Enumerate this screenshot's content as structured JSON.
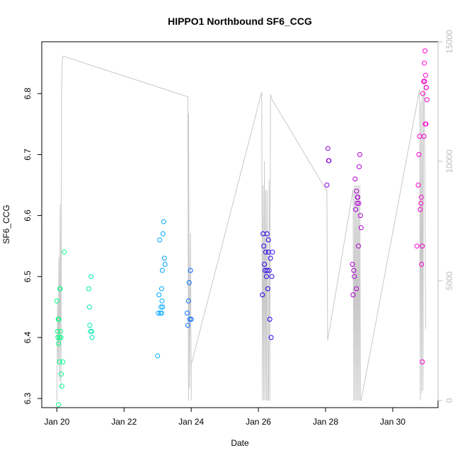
{
  "chart_data": {
    "type": "scatter",
    "title": "HIPPO1 Northbound SF6_CCG",
    "xlabel": "Date",
    "ylabel": "SF6_CCG",
    "x_ticks": [
      "Jan 20",
      "Jan 22",
      "Jan 24",
      "Jan 26",
      "Jan 28",
      "Jan 30"
    ],
    "x_tick_days": [
      20,
      22,
      24,
      26,
      28,
      30
    ],
    "xlim_days": [
      19.55,
      31.35
    ],
    "ylim": [
      6.285,
      6.885
    ],
    "y_ticks": [
      6.3,
      6.4,
      6.5,
      6.6,
      6.7,
      6.8
    ],
    "y2_ticks": [
      0,
      5000,
      10000,
      15000
    ],
    "y2lim": [
      -300,
      15000
    ],
    "color_scale": [
      "#00ff7f",
      "#00bfff",
      "#0000ff",
      "#9400d3",
      "#ff00cc"
    ],
    "points": [
      [
        20.0,
        6.46
      ],
      [
        20.02,
        6.41
      ],
      [
        20.03,
        6.4
      ],
      [
        20.04,
        6.43
      ],
      [
        20.05,
        6.39
      ],
      [
        20.06,
        6.43
      ],
      [
        20.08,
        6.4
      ],
      [
        20.1,
        6.48
      ],
      [
        20.11,
        6.41
      ],
      [
        20.12,
        6.4
      ],
      [
        20.08,
        6.36
      ],
      [
        20.13,
        6.34
      ],
      [
        20.15,
        6.32
      ],
      [
        20.18,
        6.36
      ],
      [
        20.22,
        6.54
      ],
      [
        20.05,
        6.29
      ],
      [
        20.09,
        6.48
      ],
      [
        20.95,
        6.48
      ],
      [
        20.97,
        6.45
      ],
      [
        20.98,
        6.42
      ],
      [
        21.0,
        6.41
      ],
      [
        21.02,
        6.5
      ],
      [
        21.04,
        6.41
      ],
      [
        21.05,
        6.4
      ],
      [
        23.0,
        6.37
      ],
      [
        23.02,
        6.44
      ],
      [
        23.04,
        6.47
      ],
      [
        23.06,
        6.56
      ],
      [
        23.08,
        6.44
      ],
      [
        23.1,
        6.45
      ],
      [
        23.12,
        6.48
      ],
      [
        23.14,
        6.51
      ],
      [
        23.15,
        6.45
      ],
      [
        23.16,
        6.57
      ],
      [
        23.18,
        6.59
      ],
      [
        23.2,
        6.53
      ],
      [
        23.22,
        6.52
      ],
      [
        23.12,
        6.44
      ],
      [
        23.13,
        6.46
      ],
      [
        23.88,
        6.44
      ],
      [
        23.9,
        6.42
      ],
      [
        23.92,
        6.46
      ],
      [
        23.94,
        6.49
      ],
      [
        23.96,
        6.43
      ],
      [
        23.98,
        6.51
      ],
      [
        24.0,
        6.43
      ],
      [
        26.12,
        6.47
      ],
      [
        26.14,
        6.57
      ],
      [
        26.16,
        6.55
      ],
      [
        26.18,
        6.52
      ],
      [
        26.2,
        6.51
      ],
      [
        26.22,
        6.54
      ],
      [
        26.24,
        6.5
      ],
      [
        26.26,
        6.57
      ],
      [
        26.28,
        6.48
      ],
      [
        26.3,
        6.54
      ],
      [
        26.32,
        6.51
      ],
      [
        26.34,
        6.43
      ],
      [
        26.36,
        6.53
      ],
      [
        26.38,
        6.4
      ],
      [
        26.4,
        6.5
      ],
      [
        26.42,
        6.54
      ],
      [
        26.26,
        6.51
      ],
      [
        26.3,
        6.56
      ],
      [
        28.04,
        6.65
      ],
      [
        28.07,
        6.71
      ],
      [
        28.09,
        6.69
      ],
      [
        28.1,
        6.69
      ],
      [
        28.8,
        6.52
      ],
      [
        28.82,
        6.47
      ],
      [
        28.84,
        6.51
      ],
      [
        28.86,
        6.5
      ],
      [
        28.88,
        6.66
      ],
      [
        28.9,
        6.61
      ],
      [
        28.92,
        6.64
      ],
      [
        28.94,
        6.62
      ],
      [
        28.96,
        6.63
      ],
      [
        28.98,
        6.55
      ],
      [
        29.0,
        6.68
      ],
      [
        29.02,
        6.7
      ],
      [
        29.04,
        6.6
      ],
      [
        29.06,
        6.58
      ],
      [
        28.92,
        6.48
      ],
      [
        28.95,
        6.63
      ],
      [
        28.99,
        6.62
      ],
      [
        30.72,
        6.55
      ],
      [
        30.76,
        6.65
      ],
      [
        30.78,
        6.7
      ],
      [
        30.8,
        6.73
      ],
      [
        30.82,
        6.61
      ],
      [
        30.84,
        6.62
      ],
      [
        30.86,
        6.52
      ],
      [
        30.88,
        6.36
      ],
      [
        30.9,
        6.8
      ],
      [
        30.92,
        6.82
      ],
      [
        30.94,
        6.85
      ],
      [
        30.96,
        6.87
      ],
      [
        30.98,
        6.83
      ],
      [
        31.0,
        6.81
      ],
      [
        31.02,
        6.79
      ],
      [
        30.85,
        6.63
      ],
      [
        30.88,
        6.55
      ],
      [
        30.93,
        6.73
      ],
      [
        30.97,
        6.75
      ],
      [
        31.0,
        6.81
      ],
      [
        30.95,
        6.82
      ],
      [
        30.99,
        6.75
      ]
    ],
    "altitude_track": [
      [
        20.0,
        0
      ],
      [
        20.02,
        4200
      ],
      [
        20.04,
        1500
      ],
      [
        20.06,
        6000
      ],
      [
        20.08,
        800
      ],
      [
        20.1,
        8200
      ],
      [
        20.12,
        500
      ],
      [
        20.14,
        12800
      ],
      [
        20.16,
        14200
      ],
      [
        20.18,
        14400
      ],
      [
        23.9,
        12700
      ],
      [
        23.92,
        0
      ],
      [
        23.92,
        12000
      ],
      [
        23.95,
        500
      ],
      [
        23.98,
        7000
      ],
      [
        24.0,
        0
      ],
      [
        24.0,
        1500
      ],
      [
        26.1,
        12900
      ],
      [
        26.12,
        0
      ],
      [
        26.14,
        9000
      ],
      [
        26.16,
        0
      ],
      [
        26.18,
        10000
      ],
      [
        26.2,
        0
      ],
      [
        26.22,
        8800
      ],
      [
        26.24,
        0
      ],
      [
        26.26,
        8800
      ],
      [
        26.28,
        0
      ],
      [
        26.3,
        0
      ],
      [
        26.32,
        9200
      ],
      [
        26.34,
        0
      ],
      [
        26.36,
        12800
      ],
      [
        26.4,
        12600
      ],
      [
        28.02,
        8800
      ],
      [
        28.04,
        8800
      ],
      [
        28.06,
        2500
      ],
      [
        28.82,
        8800
      ],
      [
        28.84,
        0
      ],
      [
        28.86,
        9000
      ],
      [
        28.88,
        0
      ],
      [
        28.9,
        9000
      ],
      [
        28.92,
        0
      ],
      [
        28.94,
        9000
      ],
      [
        28.96,
        0
      ],
      [
        28.98,
        9000
      ],
      [
        29.0,
        0
      ],
      [
        29.02,
        9000
      ],
      [
        29.04,
        0
      ],
      [
        29.06,
        0
      ],
      [
        30.8,
        13000
      ],
      [
        30.82,
        0
      ],
      [
        30.84,
        12500
      ],
      [
        30.86,
        300
      ],
      [
        30.88,
        12800
      ],
      [
        30.9,
        400
      ],
      [
        30.92,
        12800
      ],
      [
        30.94,
        13500
      ],
      [
        30.96,
        9000
      ],
      [
        30.98,
        3000
      ]
    ]
  }
}
